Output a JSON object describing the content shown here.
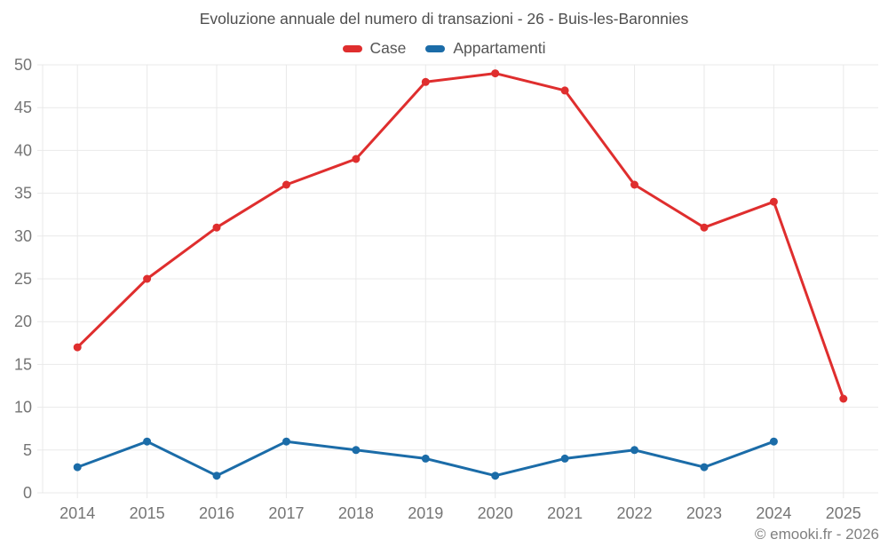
{
  "chart_data": {
    "type": "line",
    "title": "Evoluzione annuale del numero di transazioni - 26 - Buis-les-Baronnies",
    "categories": [
      "2014",
      "2015",
      "2016",
      "2017",
      "2018",
      "2019",
      "2020",
      "2021",
      "2022",
      "2023",
      "2024",
      "2025"
    ],
    "series": [
      {
        "name": "Case",
        "color": "#df2e2e",
        "values": [
          17,
          25,
          31,
          36,
          39,
          48,
          49,
          47,
          36,
          31,
          34,
          11
        ]
      },
      {
        "name": "Appartamenti",
        "color": "#1b6ca8",
        "values": [
          3,
          6,
          2,
          6,
          5,
          4,
          2,
          4,
          5,
          3,
          6,
          null
        ]
      }
    ],
    "ylim": [
      0,
      50
    ],
    "ytick_step": 5,
    "grid": true,
    "legend_position": "top",
    "xlabel": "",
    "ylabel": ""
  },
  "footer": {
    "copyright": "© emooki.fr - 2026"
  }
}
